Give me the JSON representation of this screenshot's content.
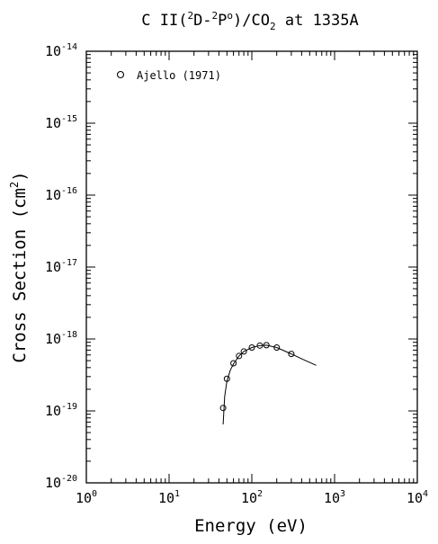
{
  "chart_data": {
    "type": "scatter",
    "title": {
      "prefix": "C II(",
      "sup1": "2",
      "mid1": "D-",
      "sup2": "2",
      "mid2": "P",
      "sup3": "o",
      "mid3": ")/CO",
      "sub1": "2",
      "suffix": " at 1335A"
    },
    "xlabel": "Energy (eV)",
    "ylabel": {
      "text": "Cross Section (cm",
      "sup": "2",
      "close": ")"
    },
    "x_scale": "log",
    "y_scale": "log",
    "xlim": [
      1,
      10000
    ],
    "ylim": [
      1e-20,
      1e-14
    ],
    "x_ticks": [
      {
        "base": "10",
        "exp": "0",
        "value": 1
      },
      {
        "base": "10",
        "exp": "1",
        "value": 10
      },
      {
        "base": "10",
        "exp": "2",
        "value": 100
      },
      {
        "base": "10",
        "exp": "3",
        "value": 1000
      },
      {
        "base": "10",
        "exp": "4",
        "value": 10000
      }
    ],
    "y_ticks": [
      {
        "base": "10",
        "exp": "-20",
        "value": 1e-20
      },
      {
        "base": "10",
        "exp": "-19",
        "value": 1e-19
      },
      {
        "base": "10",
        "exp": "-18",
        "value": 1e-18
      },
      {
        "base": "10",
        "exp": "-17",
        "value": 1e-17
      },
      {
        "base": "10",
        "exp": "-16",
        "value": 1e-16
      },
      {
        "base": "10",
        "exp": "-15",
        "value": 1e-15
      },
      {
        "base": "10",
        "exp": "-14",
        "value": 1e-14
      }
    ],
    "grid": false,
    "legend": {
      "placement": "top-left",
      "entries": [
        {
          "label": "Ajello (1971)",
          "marker": "open-circle"
        }
      ]
    },
    "series": [
      {
        "name": "Ajello (1971)",
        "marker": "open-circle",
        "x": [
          45,
          50,
          60,
          70,
          80,
          100,
          125,
          150,
          200,
          300
        ],
        "y": [
          1.1e-19,
          2.8e-19,
          4.6e-19,
          5.8e-19,
          6.7e-19,
          7.6e-19,
          8.1e-19,
          8.2e-19,
          7.6e-19,
          6.2e-19
        ]
      },
      {
        "marker": "none",
        "line": "solid",
        "x": [
          45,
          47,
          50,
          55,
          60,
          70,
          80,
          100,
          125,
          150,
          200,
          300,
          400,
          600
        ],
        "y": [
          6.5e-20,
          1.6e-19,
          2.6e-19,
          3.7e-19,
          4.5e-19,
          5.8e-19,
          6.7e-19,
          7.6e-19,
          8.1e-19,
          8.2e-19,
          7.6e-19,
          6.2e-19,
          5.3e-19,
          4.3e-19
        ]
      }
    ]
  }
}
